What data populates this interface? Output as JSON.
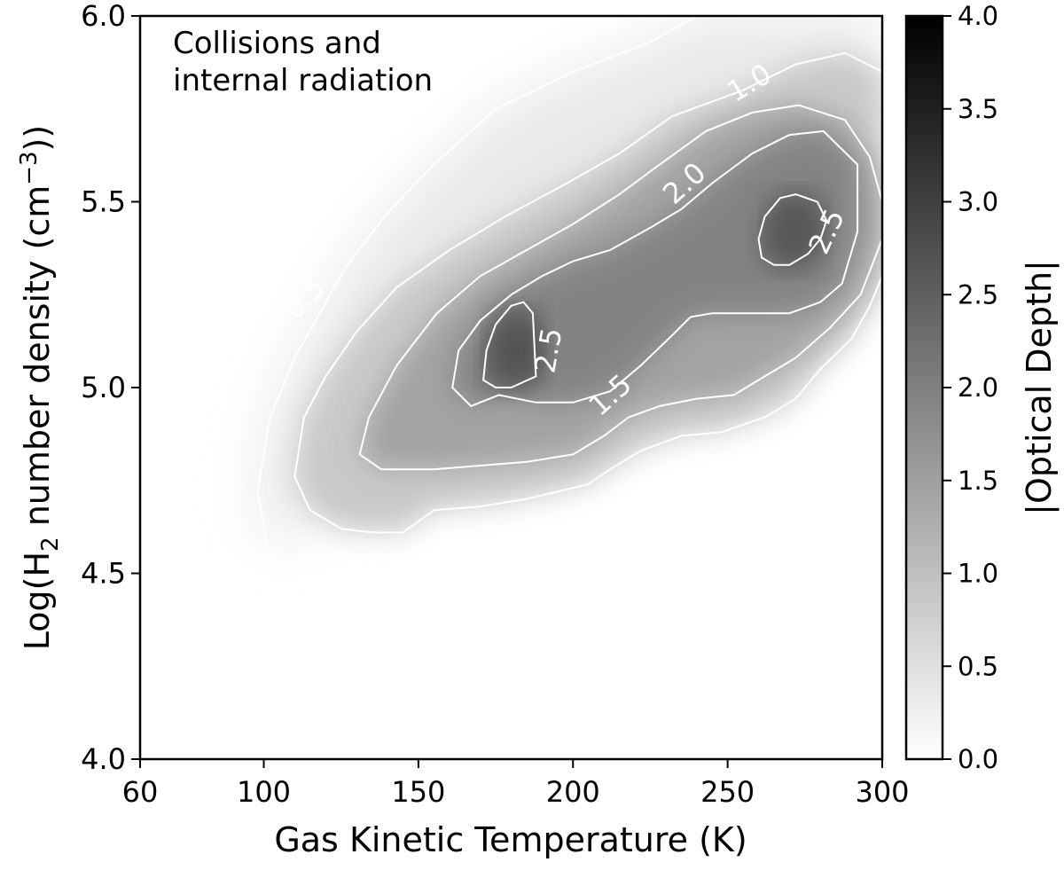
{
  "chart_data": {
    "type": "heatmap",
    "annotation": [
      "Collisions and",
      "internal radiation"
    ],
    "x": {
      "label": "Gas Kinetic Temperature (K)",
      "range": [
        60,
        300
      ],
      "ticks": [
        60,
        100,
        150,
        200,
        250,
        300
      ],
      "tick_labels": [
        "60",
        "100",
        "150",
        "200",
        "250",
        "300"
      ]
    },
    "y": {
      "label_parts": [
        "Log(H",
        "2",
        " number density (cm",
        "−3",
        "))"
      ],
      "range": [
        4.0,
        6.0
      ],
      "ticks": [
        4.0,
        4.5,
        5.0,
        5.5,
        6.0
      ],
      "tick_labels": [
        "4.0",
        "4.5",
        "5.0",
        "5.5",
        "6.0"
      ]
    },
    "colorbar": {
      "label": "|Optical Depth|",
      "range": [
        0.0,
        4.0
      ],
      "ticks": [
        0.0,
        0.5,
        1.0,
        1.5,
        2.0,
        2.5,
        3.0,
        3.5,
        4.0
      ],
      "tick_labels": [
        "0.0",
        "0.5",
        "1.0",
        "1.5",
        "2.0",
        "2.5",
        "3.0",
        "3.5",
        "4.0"
      ],
      "colormap": [
        "#ffffff",
        "#000000"
      ]
    },
    "peaks": [
      {
        "x": 182,
        "y": 5.1,
        "value": 2.7
      },
      {
        "x": 272,
        "y": 5.42,
        "value": 2.65
      }
    ],
    "contours": [
      {
        "level": 0.5,
        "label": "0.5",
        "points": [
          [
            101,
            4.58
          ],
          [
            98,
            4.72
          ],
          [
            102,
            4.92
          ],
          [
            110,
            5.08
          ],
          [
            118,
            5.2
          ],
          [
            127,
            5.33
          ],
          [
            140,
            5.47
          ],
          [
            155,
            5.6
          ],
          [
            175,
            5.75
          ],
          [
            200,
            5.85
          ],
          [
            225,
            5.93
          ],
          [
            240,
            6.0
          ]
        ]
      },
      {
        "level": 1.0,
        "label": "1.0",
        "points": [
          [
            300,
            5.3
          ],
          [
            296,
            5.22
          ],
          [
            290,
            5.13
          ],
          [
            280,
            5.05
          ],
          [
            272,
            4.97
          ],
          [
            262,
            4.92
          ],
          [
            248,
            4.88
          ],
          [
            235,
            4.87
          ],
          [
            222,
            4.83
          ],
          [
            212,
            4.78
          ],
          [
            205,
            4.74
          ],
          [
            200,
            4.73
          ],
          [
            185,
            4.7
          ],
          [
            170,
            4.68
          ],
          [
            155,
            4.67
          ],
          [
            145,
            4.61
          ],
          [
            135,
            4.61
          ],
          [
            125,
            4.62
          ],
          [
            115,
            4.67
          ],
          [
            110,
            4.76
          ],
          [
            113,
            4.92
          ],
          [
            120,
            5.03
          ],
          [
            130,
            5.15
          ],
          [
            143,
            5.27
          ],
          [
            160,
            5.37
          ],
          [
            178,
            5.46
          ],
          [
            198,
            5.55
          ],
          [
            215,
            5.63
          ],
          [
            232,
            5.73
          ],
          [
            255,
            5.8
          ],
          [
            272,
            5.87
          ],
          [
            288,
            5.9
          ],
          [
            300,
            5.85
          ]
        ]
      },
      {
        "level": 1.5,
        "label": "1.5",
        "points": [
          [
            300,
            5.4
          ],
          [
            293,
            5.25
          ],
          [
            283,
            5.16
          ],
          [
            272,
            5.08
          ],
          [
            262,
            5.03
          ],
          [
            252,
            4.98
          ],
          [
            240,
            4.97
          ],
          [
            228,
            4.95
          ],
          [
            218,
            4.92
          ],
          [
            210,
            4.87
          ],
          [
            200,
            4.82
          ],
          [
            185,
            4.8
          ],
          [
            170,
            4.79
          ],
          [
            155,
            4.78
          ],
          [
            138,
            4.78
          ],
          [
            131,
            4.82
          ],
          [
            134,
            4.92
          ],
          [
            143,
            5.06
          ],
          [
            156,
            5.2
          ],
          [
            170,
            5.3
          ],
          [
            185,
            5.37
          ],
          [
            200,
            5.44
          ],
          [
            215,
            5.52
          ],
          [
            228,
            5.6
          ],
          [
            243,
            5.69
          ],
          [
            258,
            5.74
          ],
          [
            273,
            5.76
          ],
          [
            288,
            5.72
          ],
          [
            296,
            5.62
          ],
          [
            300,
            5.5
          ]
        ]
      },
      {
        "level": 2.0,
        "label": "2.0",
        "points": [
          [
            281,
            5.69
          ],
          [
            292,
            5.6
          ],
          [
            292,
            5.42
          ],
          [
            287,
            5.28
          ],
          [
            280,
            5.23
          ],
          [
            270,
            5.2
          ],
          [
            258,
            5.2
          ],
          [
            245,
            5.2
          ],
          [
            238,
            5.19
          ],
          [
            232,
            5.14
          ],
          [
            222,
            5.06
          ],
          [
            212,
            4.99
          ],
          [
            200,
            4.96
          ],
          [
            188,
            4.96
          ],
          [
            176,
            4.98
          ],
          [
            167,
            4.95
          ],
          [
            161,
            5.0
          ],
          [
            163,
            5.1
          ],
          [
            170,
            5.18
          ],
          [
            180,
            5.25
          ],
          [
            190,
            5.3
          ],
          [
            200,
            5.34
          ],
          [
            212,
            5.37
          ],
          [
            225,
            5.43
          ],
          [
            235,
            5.48
          ],
          [
            245,
            5.55
          ],
          [
            258,
            5.63
          ],
          [
            270,
            5.68
          ],
          [
            281,
            5.69
          ]
        ]
      },
      {
        "level": 2.5,
        "label": "2.5",
        "points": [
          [
            187,
            5.2
          ],
          [
            184,
            5.23
          ],
          [
            180,
            5.22
          ],
          [
            175,
            5.17
          ],
          [
            172,
            5.1
          ],
          [
            171,
            5.02
          ],
          [
            175,
            5.0
          ],
          [
            180,
            5.0
          ],
          [
            188,
            5.03
          ]
        ]
      },
      {
        "level": 2.5,
        "label": "2.5",
        "points": [
          [
            272,
            5.52
          ],
          [
            267,
            5.51
          ],
          [
            262,
            5.46
          ],
          [
            260,
            5.4
          ],
          [
            261,
            5.35
          ],
          [
            265,
            5.33
          ],
          [
            270,
            5.33
          ],
          [
            276,
            5.36
          ],
          [
            280,
            5.4
          ],
          [
            282,
            5.45
          ],
          [
            279,
            5.5
          ],
          [
            272,
            5.52
          ]
        ]
      }
    ],
    "contour_labels": [
      {
        "text": "0.5",
        "x": 113,
        "y": 5.24,
        "angle": -45
      },
      {
        "text": "1.0",
        "x": 257,
        "y": 5.82,
        "angle": -31
      },
      {
        "text": "2.0",
        "x": 236,
        "y": 5.55,
        "angle": -42
      },
      {
        "text": "2.5",
        "x": 192,
        "y": 5.1,
        "angle": -80
      },
      {
        "text": "2.5",
        "x": 282,
        "y": 5.42,
        "angle": -65
      },
      {
        "text": "1.5",
        "x": 212,
        "y": 4.98,
        "angle": -42
      }
    ]
  }
}
